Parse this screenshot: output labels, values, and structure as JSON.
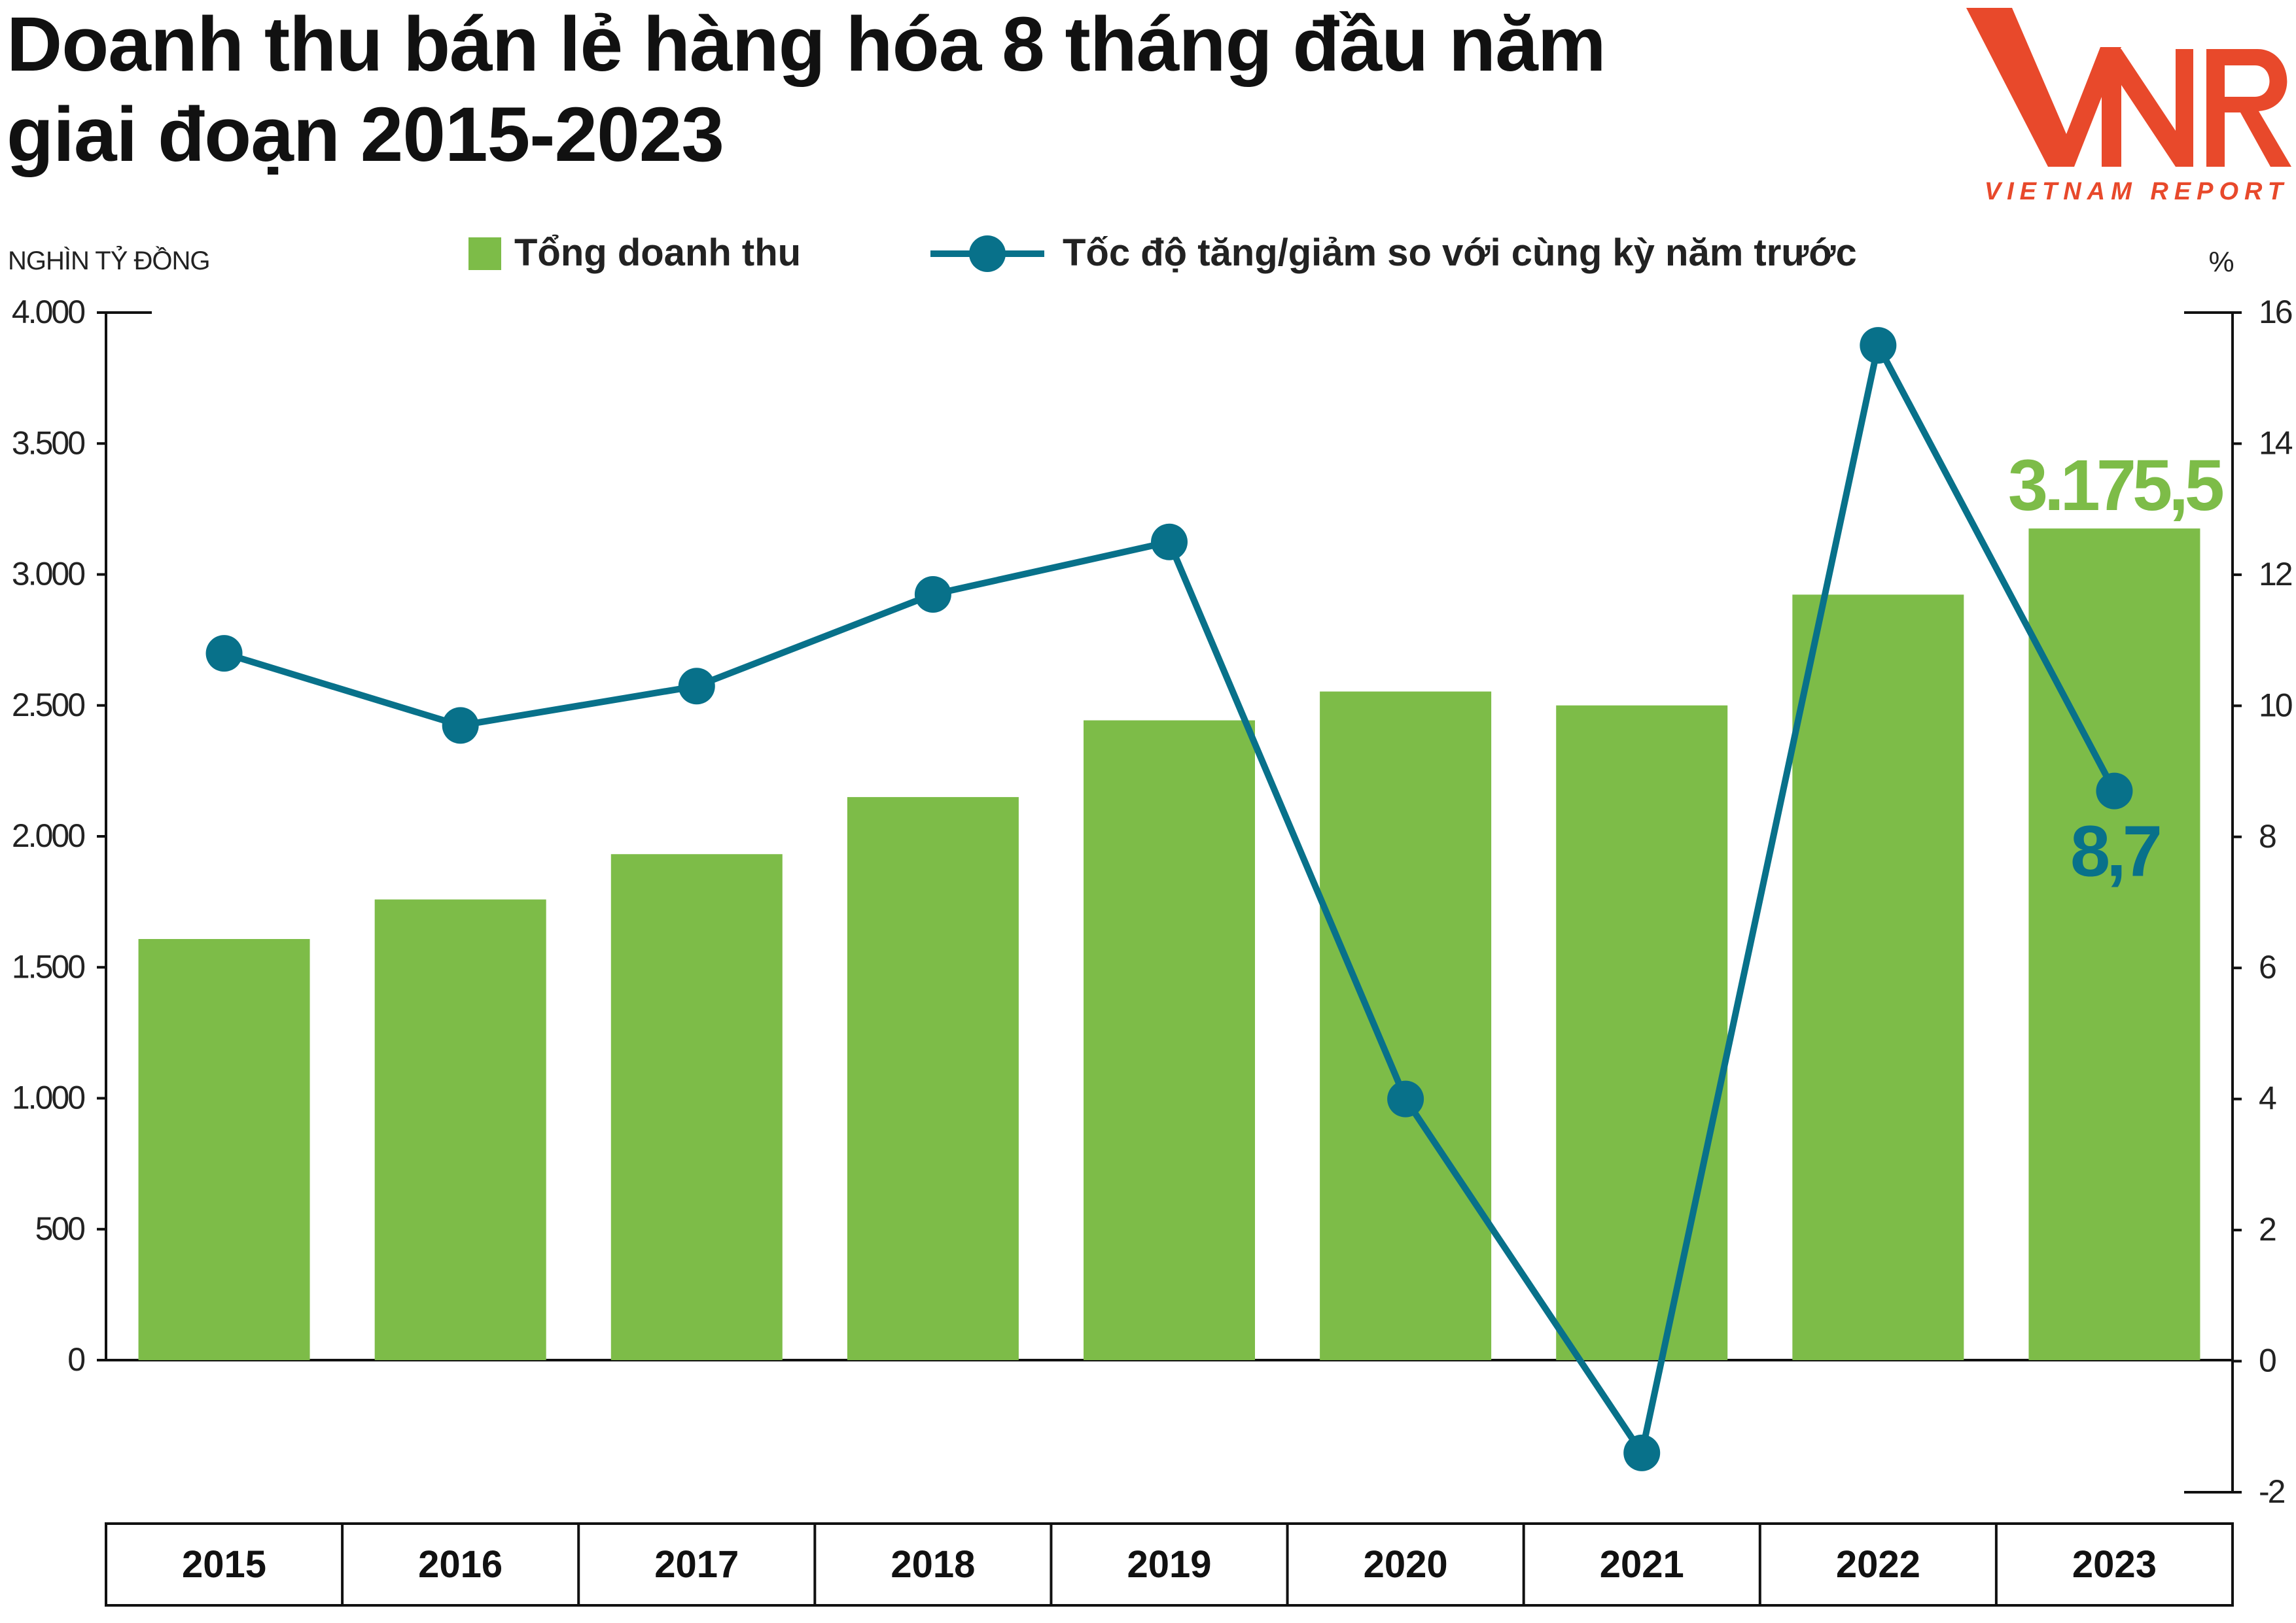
{
  "title_line1": "Doanh thu bán lẻ hàng hóa 8 tháng đầu năm",
  "title_line2": "giai đoạn 2015-2023",
  "logo": {
    "mark": "VNR",
    "caption": "VIETNAM REPORT",
    "color": "#e8492b"
  },
  "chart_data": {
    "type": "bar+line",
    "categories": [
      "2015",
      "2016",
      "2017",
      "2018",
      "2019",
      "2020",
      "2021",
      "2022",
      "2023"
    ],
    "y_left_label": "NGHÌN TỶ ĐỒNG",
    "y_right_label": "%",
    "y_left_lim": [
      0,
      4000
    ],
    "y_left_ticks": [
      0,
      500,
      1000,
      1500,
      2000,
      2500,
      3000,
      3500,
      4000
    ],
    "y_left_tick_labels": [
      "0",
      "500",
      "1.000",
      "1.500",
      "2.000",
      "2.500",
      "3.000",
      "3.500",
      "4.000"
    ],
    "y_right_lim": [
      -2,
      16
    ],
    "y_right_ticks": [
      -2,
      0,
      2,
      4,
      6,
      8,
      10,
      12,
      14,
      16
    ],
    "y_right_tick_labels": [
      "-2",
      "0",
      "2",
      "4",
      "6",
      "8",
      "10",
      "12",
      "14",
      "16"
    ],
    "legend_position": "top-center",
    "bar_series": {
      "name": "Tổng doanh thu",
      "color": "#7dbc48",
      "values": [
        1608,
        1759,
        1932,
        2150,
        2443,
        2553,
        2500,
        2923,
        3175.5
      ]
    },
    "line_series": {
      "name": "Tốc độ tăng/giảm so với cùng kỳ năm trước",
      "color": "#08718a",
      "values": [
        10.8,
        9.7,
        10.3,
        11.7,
        12.5,
        4.0,
        -1.4,
        15.5,
        8.7
      ]
    },
    "annotations": [
      {
        "series": "bar",
        "category": "2023",
        "text": "3.175,5",
        "color": "#7dbc48"
      },
      {
        "series": "line",
        "category": "2023",
        "text": "8,7",
        "color": "#08718a"
      }
    ]
  }
}
